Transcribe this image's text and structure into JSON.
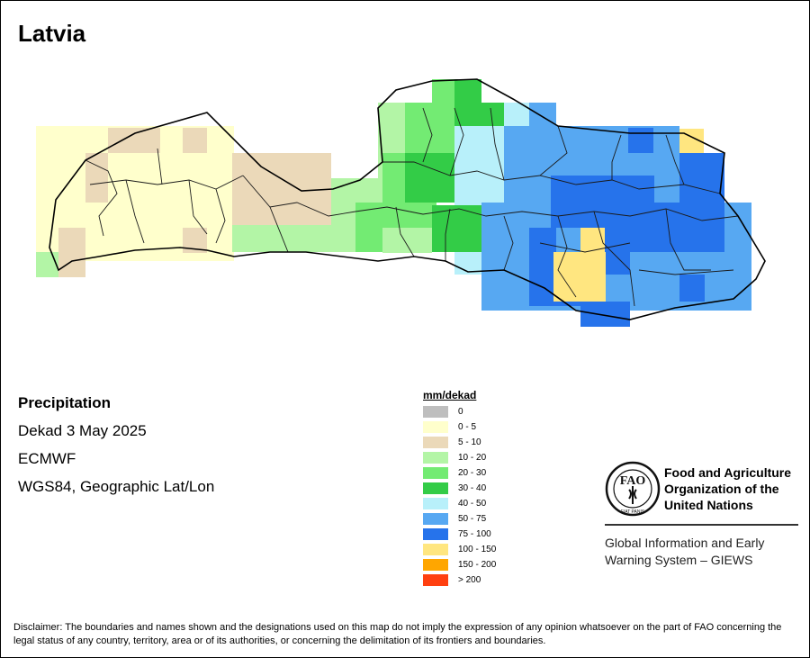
{
  "title": "Latvia",
  "info": {
    "heading": "Precipitation",
    "period": "Dekad 3 May 2025",
    "source": "ECMWF",
    "projection": "WGS84, Geographic Lat/Lon"
  },
  "legend": {
    "title": "mm/dekad",
    "items": [
      {
        "label": "0",
        "color": "#bebebe"
      },
      {
        "label": "0 - 5",
        "color": "#ffffcc"
      },
      {
        "label": "5 - 10",
        "color": "#ebd9b9"
      },
      {
        "label": "10 - 20",
        "color": "#b3f5a6"
      },
      {
        "label": "20 - 30",
        "color": "#73eb73"
      },
      {
        "label": "30 - 40",
        "color": "#33cc47"
      },
      {
        "label": "40 - 50",
        "color": "#b8f0fa"
      },
      {
        "label": "50 - 75",
        "color": "#57a8f2"
      },
      {
        "label": "75 - 100",
        "color": "#2673eb"
      },
      {
        "label": "100 - 150",
        "color": "#ffe680"
      },
      {
        "label": "150 - 200",
        "color": "#ffa600"
      },
      {
        "label": "> 200",
        "color": "#ff4010"
      }
    ]
  },
  "organization": {
    "logo_letters": "FAO",
    "logo_motto": "FIAT PANIS",
    "name": "Food and Agriculture Organization of the United Nations",
    "system": "Global Information and Early Warning System – GIEWS"
  },
  "disclaimer": "Disclaimer: The boundaries and names shown and the designations used on this map do not imply the expression of any opinion whatsoever on the part of FAO concerning the legal status of any country, territory, area or of its authorities, or concerning the delimitation of its frontiers and boundaries."
}
